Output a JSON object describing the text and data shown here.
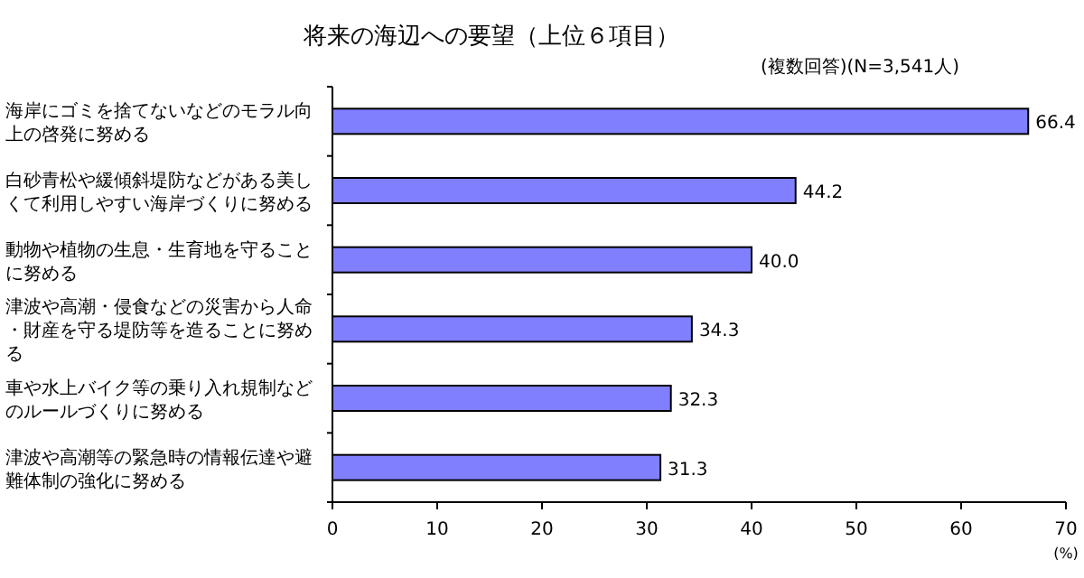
{
  "chart_data": {
    "type": "bar",
    "orientation": "horizontal",
    "title": "将来の海辺への要望（上位６項目）",
    "subtitle": "(複数回答)(N=3,541人)",
    "xlabel": "(%)",
    "categories": [
      "海岸にゴミを捨てないなどのモラル向上の啓発に努める",
      "白砂青松や緩傾斜堤防などがある美しくて利用しやすい海岸づくりに努める",
      "動物や植物の生息・生育地を守ることに努める",
      "津波や高潮・侵食などの災害から人命・財産を守る堤防等を造ることに努める",
      "車や水上バイク等の乗り入れ規制などのルールづくりに努める",
      "津波や高潮等の緊急時の情報伝達や避難体制の強化に努める"
    ],
    "values": [
      66.4,
      44.2,
      40.0,
      34.3,
      32.3,
      31.3
    ],
    "value_labels": [
      "66.4",
      "44.2",
      "40.0",
      "34.3",
      "32.3",
      "31.3"
    ],
    "color": "#8080ff",
    "xlim": [
      0,
      70
    ],
    "xticks": [
      0,
      10,
      20,
      30,
      40,
      50,
      60,
      70
    ],
    "grid": false
  }
}
